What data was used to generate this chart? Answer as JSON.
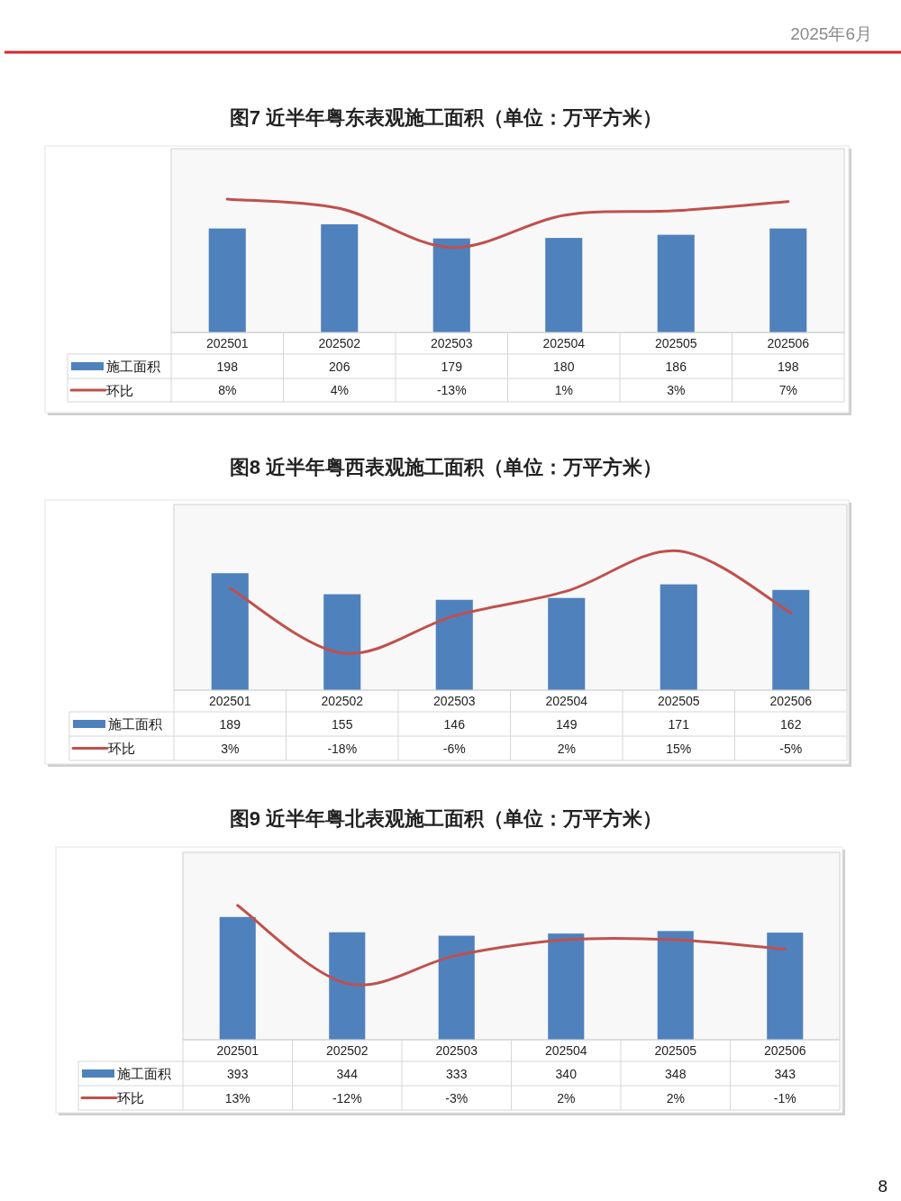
{
  "chart_data": [
    {
      "type": "bar",
      "title": "图7 近半年粤东表观施工面积（单位：万平方米）",
      "categories": [
        "202501",
        "202502",
        "202503",
        "202504",
        "202505",
        "202506"
      ],
      "series": [
        {
          "name": "施工面积",
          "color": "#4f81bd",
          "values": [
            198,
            206,
            179,
            180,
            186,
            198
          ]
        },
        {
          "name": "环比",
          "type": "line",
          "axis": "y2",
          "color": "#c0504d",
          "values": [
            8,
            4,
            -13,
            1,
            3,
            7
          ],
          "value_labels": [
            "8%",
            "4%",
            "-13%",
            "1%",
            "3%",
            "7%"
          ]
        }
      ],
      "ylim": [
        0,
        350
      ],
      "y2lim": [
        -50,
        30
      ],
      "data_labels": true,
      "legend": "bottom left",
      "tick_labels": "x",
      "annotations": [
        "2025年6月"
      ]
    },
    {
      "type": "bar",
      "title": "图8 近半年粤西表观施工面积（单位：万平方米）",
      "categories": [
        "202501",
        "202502",
        "202503",
        "202504",
        "202505",
        "202506"
      ],
      "series": [
        {
          "name": "施工面积",
          "color": "#4f81bd",
          "values": [
            189,
            155,
            146,
            149,
            171,
            162
          ]
        },
        {
          "name": "环比",
          "type": "line",
          "axis": "y2",
          "color": "#c0504d",
          "values": [
            3,
            -18,
            -6,
            2,
            15,
            -5
          ],
          "value_labels": [
            "3%",
            "-18%",
            "-6%",
            "2%",
            "15%",
            "-5%"
          ]
        }
      ],
      "ylim": [
        0,
        300
      ],
      "y2lim": [
        -30,
        30
      ],
      "data_labels": true,
      "legend": "bottom left",
      "tick_labels": "x"
    },
    {
      "type": "bar",
      "title": "图9 近半年粤北表观施工面积（单位：万平方米）",
      "categories": [
        "202501",
        "202502",
        "202503",
        "202504",
        "202505",
        "202506"
      ],
      "series": [
        {
          "name": "施工面积",
          "color": "#4f81bd",
          "values": [
            393,
            344,
            333,
            340,
            348,
            343
          ]
        },
        {
          "name": "环比",
          "type": "line",
          "axis": "y2",
          "color": "#c0504d",
          "values": [
            13,
            -12,
            -3,
            2,
            2,
            -1
          ],
          "value_labels": [
            "13%",
            "-12%",
            "-3%",
            "2%",
            "2%",
            "-1%"
          ]
        }
      ],
      "ylim": [
        0,
        600
      ],
      "y2lim": [
        -30,
        30
      ],
      "data_labels": true,
      "legend": "bottom left",
      "tick_labels": "x",
      "annotations": [
        "8"
      ]
    }
  ]
}
